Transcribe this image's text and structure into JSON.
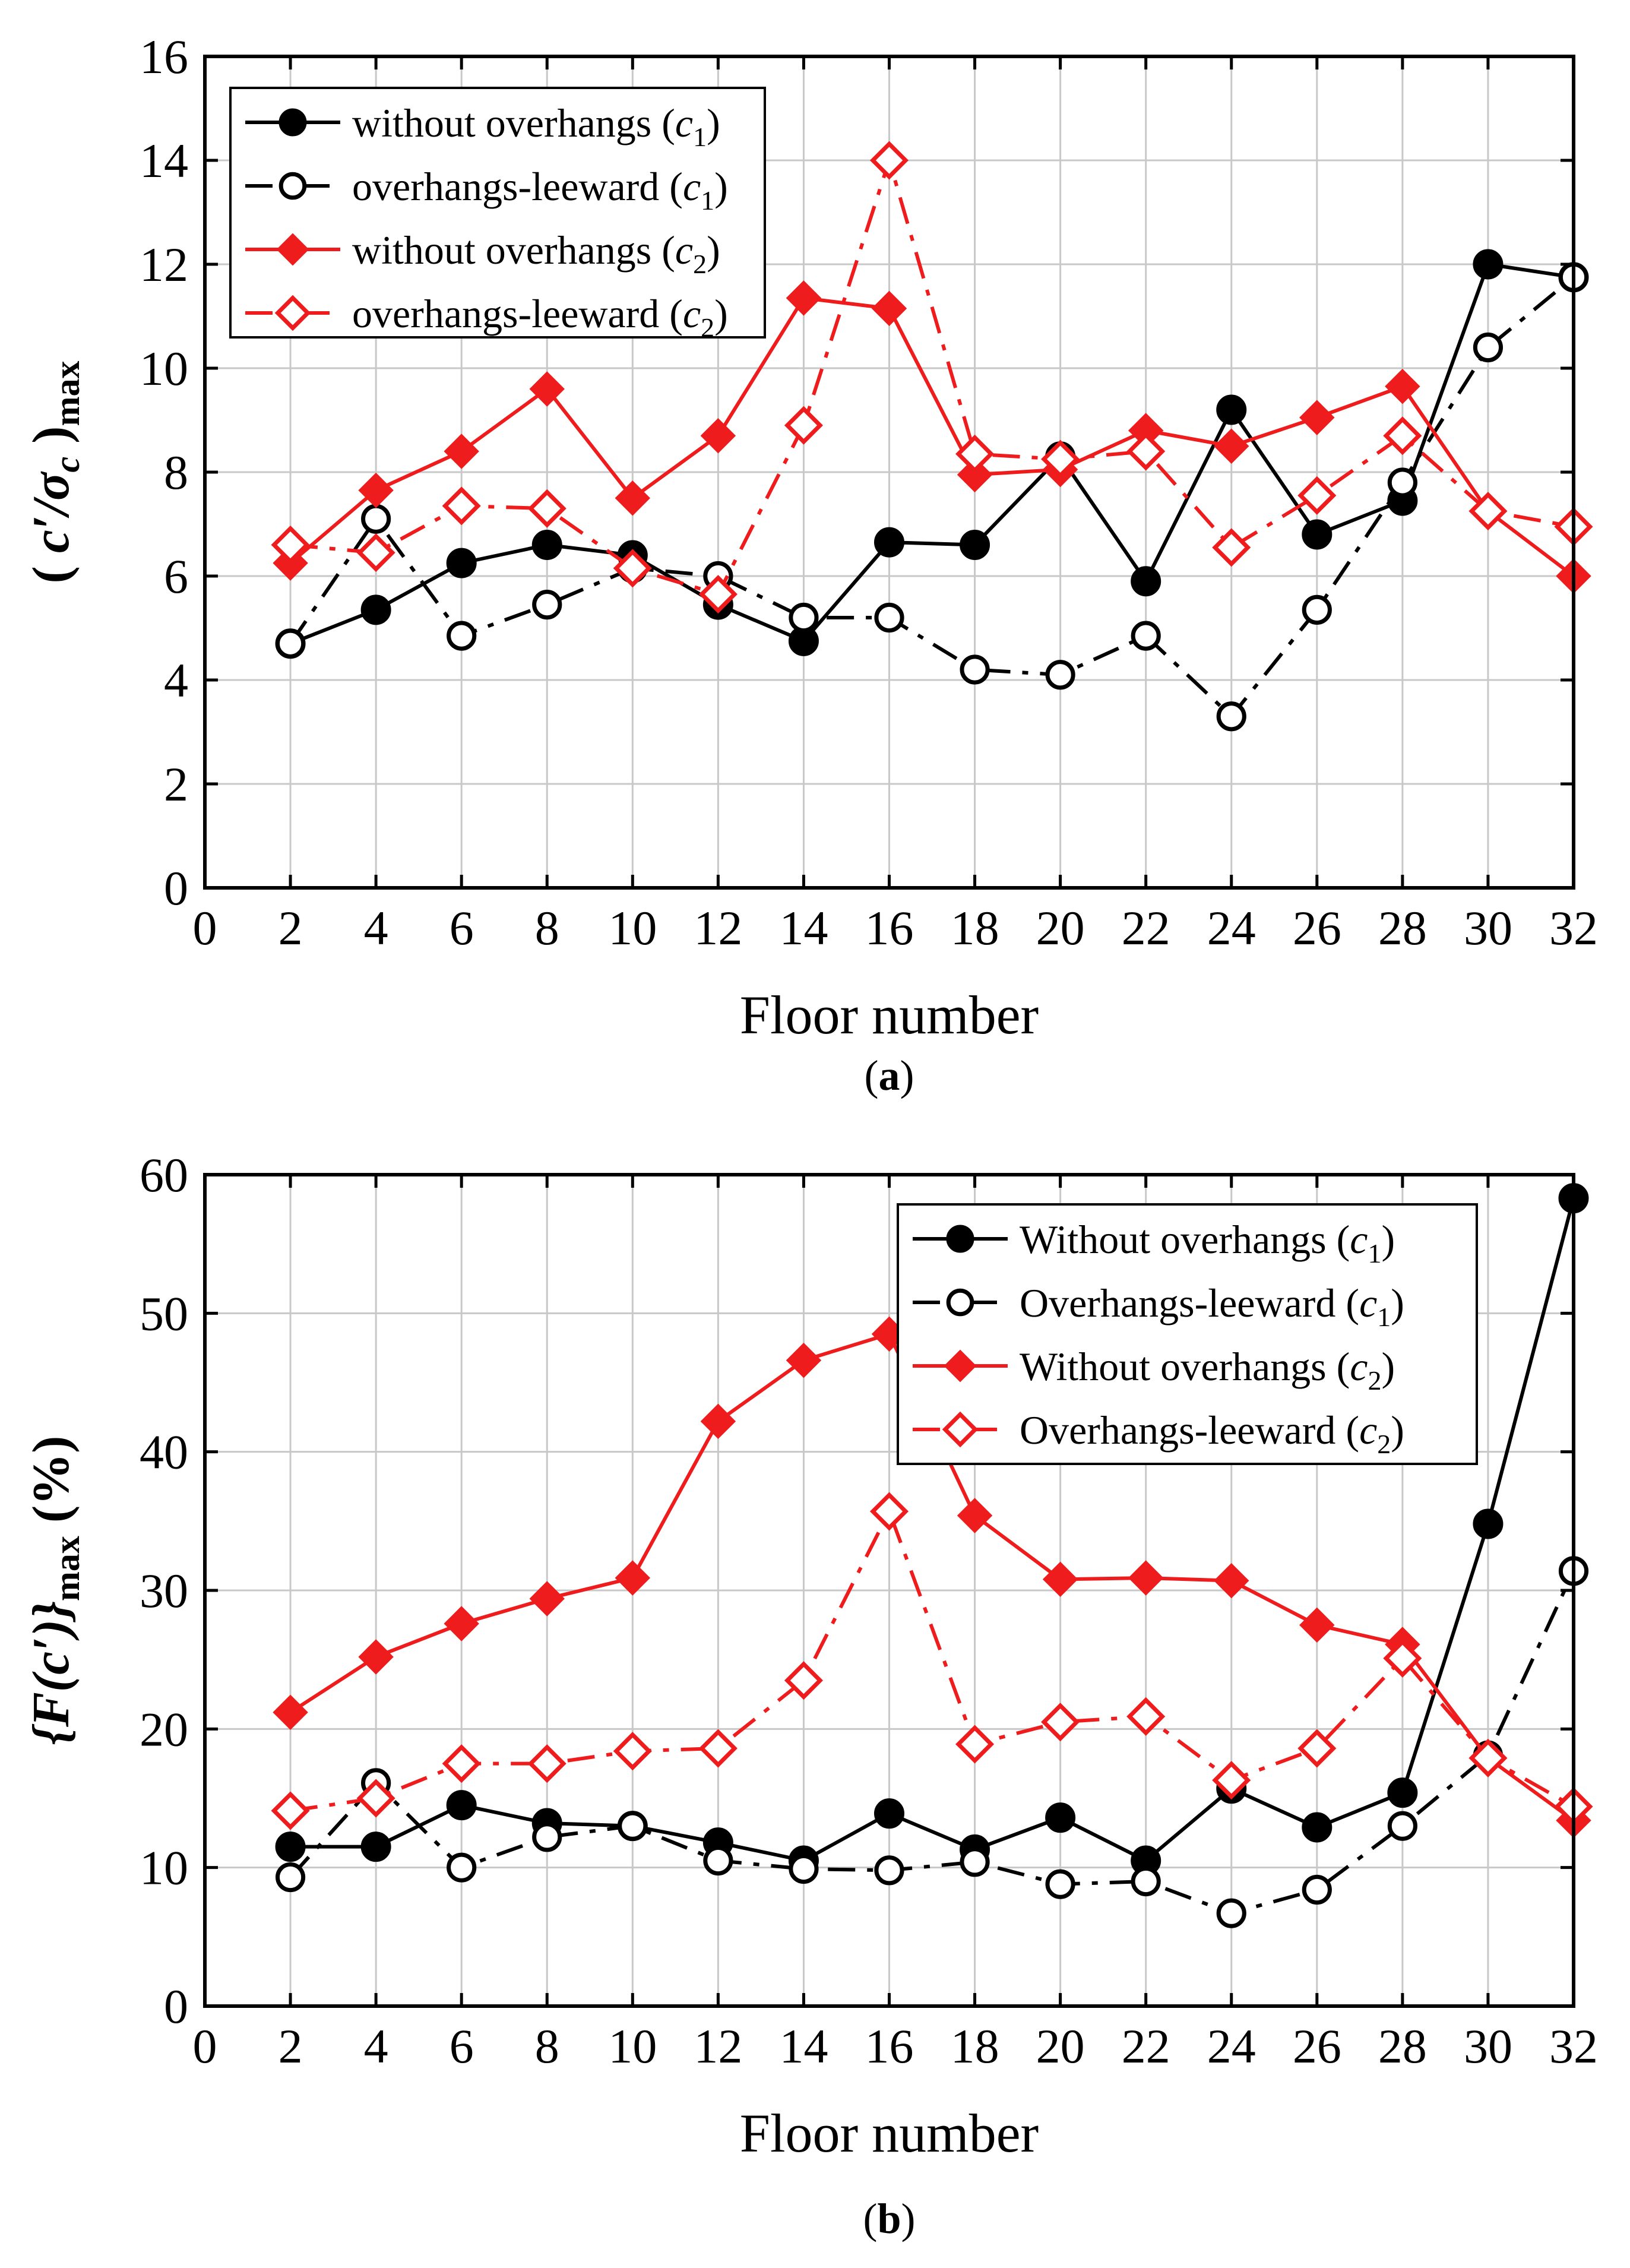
{
  "chart_data": [
    {
      "type": "line",
      "caption_letter": "a",
      "xlabel": "Floor number",
      "ylabel": {
        "main": "c′/σ",
        "sub_c": "c",
        "sub_max": "max"
      },
      "xlim": [
        0,
        32
      ],
      "ylim": [
        0,
        16
      ],
      "xticks": [
        0,
        2,
        4,
        6,
        8,
        10,
        12,
        14,
        16,
        18,
        20,
        22,
        24,
        26,
        28,
        30,
        32
      ],
      "yticks": [
        0,
        2,
        4,
        6,
        8,
        10,
        12,
        14,
        16
      ],
      "grid": true,
      "legend_position": "top-left",
      "x": [
        2,
        4,
        6,
        8,
        10,
        12,
        14,
        16,
        18,
        20,
        22,
        24,
        26,
        28,
        30,
        32
      ],
      "series": [
        {
          "name": "without overhangs (c1)",
          "label": "without overhangs (",
          "sub": "1",
          "color": "#000000",
          "marker": "filled-circle",
          "dash": "solid",
          "values": [
            4.7,
            5.35,
            6.25,
            6.6,
            6.4,
            5.45,
            4.75,
            6.65,
            6.6,
            8.3,
            5.9,
            9.2,
            6.8,
            7.45,
            12.0,
            11.75
          ]
        },
        {
          "name": "overhangs-leeward (c1)",
          "label": "overhangs-leeward (",
          "sub": "1",
          "color": "#000000",
          "marker": "open-circle",
          "dash": "dashdot",
          "values": [
            4.7,
            7.1,
            4.85,
            5.45,
            6.15,
            6.0,
            5.2,
            5.2,
            4.2,
            4.1,
            4.85,
            3.3,
            5.35,
            7.8,
            10.4,
            11.75
          ]
        },
        {
          "name": "without overhangs (c2)",
          "label": "without overhangs (",
          "sub": "2",
          "color": "#ee1c1c",
          "marker": "filled-diamond",
          "dash": "solid",
          "values": [
            6.25,
            7.65,
            8.4,
            9.6,
            7.5,
            8.7,
            11.35,
            11.15,
            7.95,
            8.05,
            8.8,
            8.5,
            9.05,
            9.65,
            7.25,
            6.0
          ]
        },
        {
          "name": "overhangs-leeward (c2)",
          "label": "overhangs-leeward (",
          "sub": "2",
          "color": "#ee1c1c",
          "marker": "open-diamond",
          "dash": "dashdot",
          "values": [
            6.6,
            6.45,
            7.35,
            7.3,
            6.15,
            5.65,
            8.9,
            14.0,
            8.35,
            8.25,
            8.4,
            6.55,
            7.55,
            8.7,
            7.25,
            6.95
          ]
        }
      ]
    },
    {
      "type": "line",
      "caption_letter": "b",
      "xlabel": "Floor number",
      "ylabel": {
        "main": "{F(c′)}",
        "sub_max": "max",
        "unit": "(%)"
      },
      "xlim": [
        0,
        32
      ],
      "ylim": [
        0,
        60
      ],
      "xticks": [
        0,
        2,
        4,
        6,
        8,
        10,
        12,
        14,
        16,
        18,
        20,
        22,
        24,
        26,
        28,
        30,
        32
      ],
      "yticks": [
        0,
        10,
        20,
        30,
        40,
        50,
        60
      ],
      "grid": true,
      "legend_position": "top-right",
      "x": [
        2,
        4,
        6,
        8,
        10,
        12,
        14,
        16,
        18,
        20,
        22,
        24,
        26,
        28,
        30,
        32
      ],
      "series": [
        {
          "name": "Without overhangs (c1)",
          "label": "Without overhangs (",
          "sub": "1",
          "color": "#000000",
          "marker": "filled-circle",
          "dash": "solid",
          "values": [
            11.5,
            11.5,
            14.5,
            13.2,
            13.0,
            11.8,
            10.5,
            13.9,
            11.3,
            13.6,
            10.5,
            15.7,
            12.9,
            15.4,
            34.8,
            58.3
          ]
        },
        {
          "name": "Overhangs-leeward (c1)",
          "label": "Overhangs-leeward (",
          "sub": "1",
          "color": "#000000",
          "marker": "open-circle",
          "dash": "dashdot",
          "values": [
            9.3,
            16.1,
            10.0,
            12.2,
            13.0,
            10.5,
            9.9,
            9.8,
            10.4,
            8.8,
            9.0,
            6.7,
            8.4,
            13.0,
            18.1,
            31.4
          ]
        },
        {
          "name": "Without overhangs (c2)",
          "label": "Without overhangs (",
          "sub": "2",
          "color": "#ee1c1c",
          "marker": "filled-diamond",
          "dash": "solid",
          "values": [
            21.2,
            25.2,
            27.6,
            29.4,
            30.9,
            42.2,
            46.6,
            48.5,
            35.4,
            30.8,
            30.9,
            30.7,
            27.5,
            26.1,
            17.9,
            13.4
          ]
        },
        {
          "name": "Overhangs-leeward (c2)",
          "label": "Overhangs-leeward (",
          "sub": "2",
          "color": "#ee1c1c",
          "marker": "open-diamond",
          "dash": "dashdot",
          "values": [
            14.1,
            15.0,
            17.5,
            17.5,
            18.4,
            18.6,
            23.5,
            35.7,
            18.9,
            20.5,
            20.9,
            16.3,
            18.6,
            25.1,
            17.9,
            14.4
          ]
        }
      ]
    }
  ]
}
